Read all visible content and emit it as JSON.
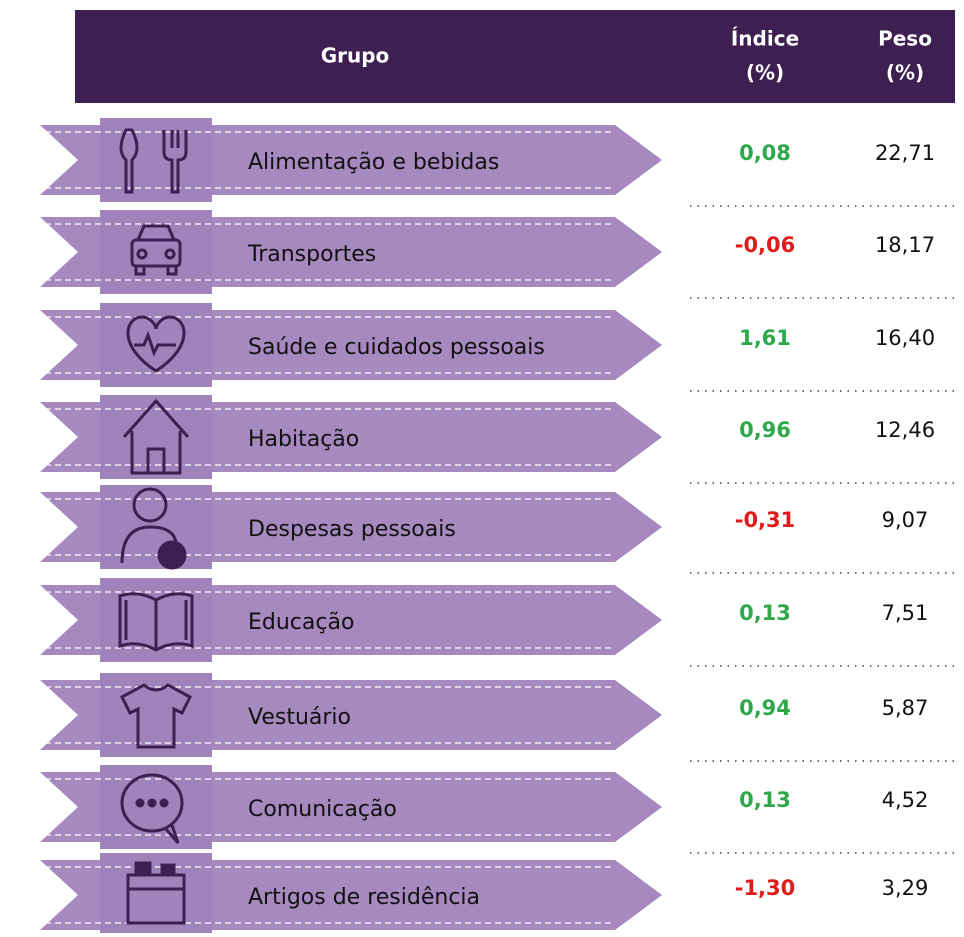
{
  "header": {
    "grupo": "Grupo",
    "indice": [
      "Índice",
      "(%)"
    ],
    "peso": [
      "Peso",
      "(%)"
    ]
  },
  "positive_color": "#2ea84a",
  "negative_color": "#e01b1b",
  "rows": [
    {
      "grupo": "Alimentação e bebidas",
      "indice": "0,08",
      "peso": "22,71"
    },
    {
      "grupo": "Transportes",
      "indice": "-0,06",
      "peso": "18,17"
    },
    {
      "grupo": "Saúde e cuidados pessoais",
      "indice": "1,61",
      "peso": "16,40"
    },
    {
      "grupo": "Habitação",
      "indice": "0,96",
      "peso": "12,46"
    },
    {
      "grupo": "Despesas pessoais",
      "indice": "-0,31",
      "peso": "9,07"
    },
    {
      "grupo": "Educação",
      "indice": "0,13",
      "peso": "7,51"
    },
    {
      "grupo": "Vestuário",
      "indice": "0,94",
      "peso": "5,87"
    },
    {
      "grupo": "Comunicação",
      "indice": "0,13",
      "peso": "4,52"
    },
    {
      "grupo": "Artigos de residência",
      "indice": "-1,30",
      "peso": "3,29"
    }
  ]
}
